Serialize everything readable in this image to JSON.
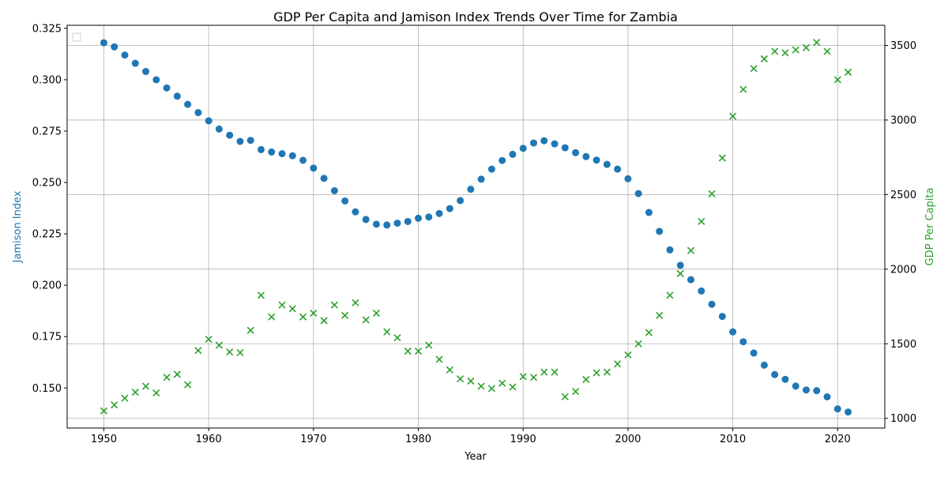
{
  "chart_data": {
    "type": "scatter",
    "title": "GDP Per Capita and Jamison Index Trends Over Time for Zambia",
    "xlabel": "Year",
    "ylabel_left": "Jamison Index",
    "ylabel_right": "GDP Per Capita",
    "xlim": [
      1946.5,
      2024.5
    ],
    "ylim_left": [
      0.1305,
      0.3265
    ],
    "ylim_right": [
      935,
      3635
    ],
    "x_ticks": [
      1950,
      1960,
      1970,
      1980,
      1990,
      2000,
      2010,
      2020
    ],
    "y_ticks_left": [
      0.15,
      0.175,
      0.2,
      0.225,
      0.25,
      0.275,
      0.3,
      0.325
    ],
    "y_ticks_right": [
      1000,
      1500,
      2000,
      2500,
      3000,
      3500
    ],
    "grid": true,
    "legend": "top-left (empty)",
    "colors": {
      "left_series": "#1f77b4",
      "right_series": "#2ca02c"
    },
    "x": [
      1950,
      1951,
      1952,
      1953,
      1954,
      1955,
      1956,
      1957,
      1958,
      1959,
      1960,
      1961,
      1962,
      1963,
      1964,
      1965,
      1966,
      1967,
      1968,
      1969,
      1970,
      1971,
      1972,
      1973,
      1974,
      1975,
      1976,
      1977,
      1978,
      1979,
      1980,
      1981,
      1982,
      1983,
      1984,
      1985,
      1986,
      1987,
      1988,
      1989,
      1990,
      1991,
      1992,
      1993,
      1994,
      1995,
      1996,
      1997,
      1998,
      1999,
      2000,
      2001,
      2002,
      2003,
      2004,
      2005,
      2006,
      2007,
      2008,
      2009,
      2010,
      2011,
      2012,
      2013,
      2014,
      2015,
      2016,
      2017,
      2018,
      2019,
      2020,
      2021
    ],
    "series": [
      {
        "axis": "left",
        "marker": "circle",
        "values": [
          0.318,
          0.316,
          0.312,
          0.308,
          0.304,
          0.3,
          0.296,
          0.292,
          0.288,
          0.284,
          0.28,
          0.276,
          0.273,
          0.27,
          0.2705,
          0.266,
          0.2648,
          0.264,
          0.263,
          0.2608,
          0.257,
          0.252,
          0.246,
          0.241,
          0.2357,
          0.232,
          0.2297,
          0.2293,
          0.2302,
          0.231,
          0.2326,
          0.2332,
          0.2349,
          0.2373,
          0.2412,
          0.2467,
          0.2516,
          0.2565,
          0.2607,
          0.2637,
          0.2666,
          0.2692,
          0.2703,
          0.2688,
          0.2669,
          0.2645,
          0.2626,
          0.2609,
          0.2588,
          0.2565,
          0.2518,
          0.2446,
          0.2354,
          0.2262,
          0.2172,
          0.2097,
          0.2027,
          0.1972,
          0.1907,
          0.1848,
          0.1773,
          0.1725,
          0.167,
          0.1611,
          0.1565,
          0.1542,
          0.1509,
          0.149,
          0.1487,
          0.1457,
          0.1398,
          0.1383
        ]
      },
      {
        "axis": "right",
        "marker": "x",
        "values": [
          1050,
          1090,
          1135,
          1175,
          1215,
          1170,
          1275,
          1295,
          1225,
          1455,
          1530,
          1490,
          1445,
          1440,
          1590,
          1825,
          1680,
          1760,
          1735,
          1680,
          1705,
          1655,
          1760,
          1690,
          1775,
          1660,
          1705,
          1580,
          1540,
          1450,
          1450,
          1490,
          1395,
          1325,
          1265,
          1250,
          1215,
          1200,
          1235,
          1210,
          1280,
          1275,
          1310,
          1310,
          1145,
          1180,
          1260,
          1305,
          1310,
          1365,
          1425,
          1500,
          1575,
          1690,
          1825,
          1970,
          2125,
          2320,
          2505,
          2745,
          3025,
          3205,
          3345,
          3410,
          3460,
          3450,
          3470,
          3485,
          3520,
          3460,
          3270,
          3320
        ]
      }
    ]
  }
}
